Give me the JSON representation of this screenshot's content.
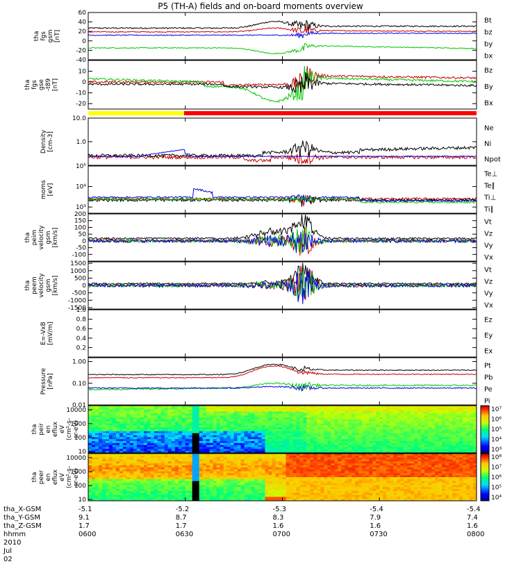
{
  "title": "P5 (TH-A) fields and on-board moments overview",
  "date": "2010 Jul 02",
  "axis_colors": {
    "black": "#000000",
    "red": "#c80000",
    "green": "#00c800",
    "blue": "#0000e0"
  },
  "footer": {
    "rows": [
      {
        "label": "tha_X-GSM",
        "values": [
          "-5.1",
          "-5.2",
          "-5.3",
          "-5.4",
          "-5.4"
        ]
      },
      {
        "label": "tha_Y-GSM",
        "values": [
          "9.1",
          "8.7",
          "8.3",
          "7.9",
          "7.4"
        ]
      },
      {
        "label": "tha_Z-GSM",
        "values": [
          "1.7",
          "1.7",
          "1.6",
          "1.6",
          "1.6"
        ]
      },
      {
        "label": "hhmm",
        "values": [
          "0600",
          "0630",
          "0700",
          "0730",
          "0800"
        ]
      }
    ]
  },
  "chart_data": [
    {
      "id": "p1",
      "type": "line",
      "ylabel": [
        "tha",
        "fgs",
        "gsm",
        "[nT]"
      ],
      "ylim": [
        -40,
        60
      ],
      "scale": "linear",
      "ticks": [
        "-40",
        "-20",
        "0",
        "20",
        "40",
        "60"
      ],
      "tick_values": [
        -40,
        -20,
        0,
        20,
        40,
        60
      ],
      "series": [
        {
          "name": "Bt",
          "color": "black"
        },
        {
          "name": "bz",
          "color": "red"
        },
        {
          "name": "by",
          "color": "green"
        },
        {
          "name": "bx",
          "color": "blue"
        }
      ]
    },
    {
      "id": "p2",
      "type": "line",
      "ylabel": [
        "tha",
        "fgs",
        "gse",
        "-t89",
        "[nT]"
      ],
      "ylim": [
        -25,
        20
      ],
      "scale": "linear",
      "ticks": [
        "-20",
        "-10",
        "0",
        "10"
      ],
      "tick_values": [
        -20,
        -10,
        0,
        10
      ],
      "series": [
        {
          "name": "Bz",
          "color": "red"
        },
        {
          "name": "By",
          "color": "green"
        },
        {
          "name": "Bx",
          "color": "black"
        }
      ]
    },
    {
      "id": "p3",
      "type": "line",
      "ylabel": [
        "Density",
        "[cm-3]"
      ],
      "ylim": [
        0.1,
        10
      ],
      "scale": "log",
      "ticks": [
        "10.0",
        "1.0"
      ],
      "tick_values": [
        10,
        1
      ],
      "series": [
        {
          "name": "Ne",
          "color": "red"
        },
        {
          "name": "Ni",
          "color": "black"
        },
        {
          "name": "Npot",
          "color": "blue"
        }
      ]
    },
    {
      "id": "p4",
      "type": "line",
      "ylabel": [
        "moms",
        "[eV]"
      ],
      "ylim": [
        500,
        100000
      ],
      "scale": "log",
      "ticks": [
        "10⁵",
        "10⁴",
        "10³"
      ],
      "tick_values": [
        100000,
        10000,
        1000
      ],
      "series": [
        {
          "name": "Te⊥",
          "color": "red"
        },
        {
          "name": "Te∥",
          "color": "black"
        },
        {
          "name": "Ti⊥",
          "color": "blue"
        },
        {
          "name": "Ti∥",
          "color": "green"
        }
      ]
    },
    {
      "id": "p5",
      "type": "line",
      "ylabel": [
        "tha",
        "peim",
        "velocity",
        "gsm",
        "[km/s]"
      ],
      "ylim": [
        -150,
        200
      ],
      "scale": "linear",
      "ticks": [
        "200",
        "150",
        "100",
        "50",
        "0",
        "-50",
        "-100"
      ],
      "tick_values": [
        200,
        150,
        100,
        50,
        0,
        -50,
        -100
      ],
      "series": [
        {
          "name": "Vt",
          "color": "black"
        },
        {
          "name": "Vz",
          "color": "red"
        },
        {
          "name": "Vy",
          "color": "green"
        },
        {
          "name": "Vx",
          "color": "blue"
        }
      ]
    },
    {
      "id": "p6",
      "type": "line",
      "ylabel": [
        "tha",
        "peem",
        "velocity",
        "gsm",
        "[km/s]"
      ],
      "ylim": [
        -1600,
        1600
      ],
      "scale": "linear",
      "ticks": [
        "1500",
        "1000",
        "500",
        "0",
        "-500",
        "-1000",
        "-1500"
      ],
      "tick_values": [
        1500,
        1000,
        500,
        0,
        -500,
        -1000,
        -1500
      ],
      "series": [
        {
          "name": "Vt",
          "color": "black"
        },
        {
          "name": "Vz",
          "color": "red"
        },
        {
          "name": "Vy",
          "color": "green"
        },
        {
          "name": "Vx",
          "color": "blue"
        }
      ]
    },
    {
      "id": "p7",
      "type": "line",
      "ylabel": [
        "E=-VxB",
        "[mV/m]"
      ],
      "ylim": [
        0,
        1
      ],
      "scale": "linear",
      "ticks": [
        "1.0",
        "0.8",
        "0.6",
        "0.4",
        "0.2"
      ],
      "tick_values": [
        1.0,
        0.8,
        0.6,
        0.4,
        0.2
      ],
      "series": [
        {
          "name": "Ez",
          "color": "red"
        },
        {
          "name": "Ey",
          "color": "green"
        },
        {
          "name": "Ex",
          "color": "blue"
        }
      ]
    },
    {
      "id": "p8",
      "type": "line",
      "ylabel": [
        "Pressure",
        "[nPa]"
      ],
      "ylim": [
        0.01,
        1.5
      ],
      "scale": "log",
      "ticks": [
        "1.00",
        "0.10",
        "0.01"
      ],
      "tick_values": [
        1,
        0.1,
        0.01
      ],
      "series": [
        {
          "name": "Pt",
          "color": "black"
        },
        {
          "name": "Pb",
          "color": "red"
        },
        {
          "name": "Pe",
          "color": "green"
        },
        {
          "name": "Pi",
          "color": "blue"
        }
      ]
    },
    {
      "id": "p9",
      "type": "heatmap",
      "ylabel": [
        "tha",
        "peir",
        "en",
        "eflux",
        "eV",
        "(cm²-s-",
        "sr-eV)"
      ],
      "ylim": [
        8,
        20000
      ],
      "scale": "log",
      "ticks": [
        "10000",
        "1000",
        "100",
        "10"
      ],
      "tick_values": [
        10000,
        1000,
        100,
        10
      ],
      "colorbar": [
        "10⁷",
        "10⁶",
        "10⁵",
        "10⁴",
        "10³"
      ]
    },
    {
      "id": "p10",
      "type": "heatmap",
      "ylabel": [
        "tha",
        "peer",
        "en",
        "eflux",
        "eV",
        "(cm²-s-",
        "sr-eV)"
      ],
      "ylim": [
        8,
        20000
      ],
      "scale": "log",
      "ticks": [
        "10000",
        "1000",
        "100",
        "10"
      ],
      "tick_values": [
        10000,
        1000,
        100,
        10
      ],
      "colorbar": [
        "10⁸",
        "10⁷",
        "10⁶",
        "10⁵",
        "10⁴"
      ]
    }
  ]
}
